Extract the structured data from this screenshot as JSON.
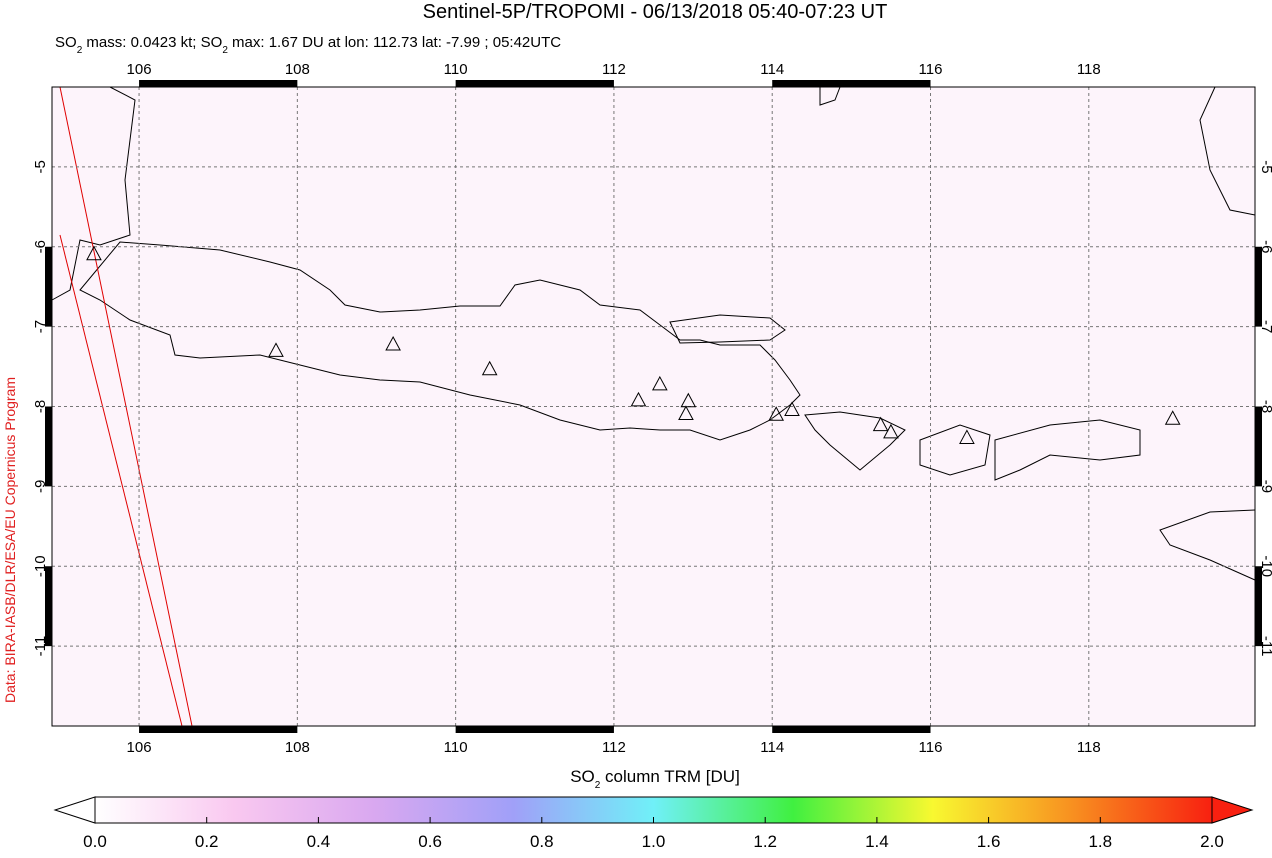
{
  "map": {
    "type": "map",
    "title": "Sentinel-5P/TROPOMI - 06/13/2018 05:40-07:23 UT",
    "subtitle": [
      "SO",
      "2",
      " mass: 0.0423 kt; SO",
      "2",
      " max: 1.67 DU at lon: 112.73 lat: -7.99 ; 05:42UTC"
    ],
    "credit": "Data: BIRA-IASB/DLR/ESA/EU Copernicus Program",
    "xlim": [
      104.9,
      120.1
    ],
    "ylim": [
      -12,
      -4
    ],
    "xticks": [
      106,
      108,
      110,
      112,
      114,
      116,
      118
    ],
    "yticks": [
      -5,
      -6,
      -7,
      -8,
      -9,
      -10,
      -11
    ],
    "grid": true,
    "volcanoes": {
      "lon": [
        105.43,
        107.73,
        109.21,
        110.43,
        112.31,
        112.58,
        112.94,
        112.91,
        114.05,
        114.25,
        115.37,
        115.5,
        116.46,
        119.06
      ],
      "lat": [
        -6.1,
        -7.31,
        -7.23,
        -7.54,
        -7.93,
        -7.73,
        -7.94,
        -8.1,
        -8.11,
        -8.05,
        -8.24,
        -8.33,
        -8.4,
        -8.16
      ]
    },
    "colorbar": {
      "label": [
        "SO",
        "2",
        " column TRM [DU]"
      ],
      "lim": [
        0,
        2
      ],
      "ticks": [
        {
          "value": 0,
          "label": "0.0"
        },
        0.2,
        0.4,
        0.6,
        0.8,
        {
          "value": 1,
          "label": "1.0"
        },
        1.2,
        1.4,
        1.6,
        1.8,
        {
          "value": 2,
          "label": "2.0"
        }
      ],
      "colors": [
        "#ffffff",
        "#f9c8f0",
        "#d9a8f0",
        "#a0a0f8",
        "#70f0f8",
        "#40f040",
        "#f8f830",
        "#f89020",
        "#f82010"
      ]
    }
  }
}
